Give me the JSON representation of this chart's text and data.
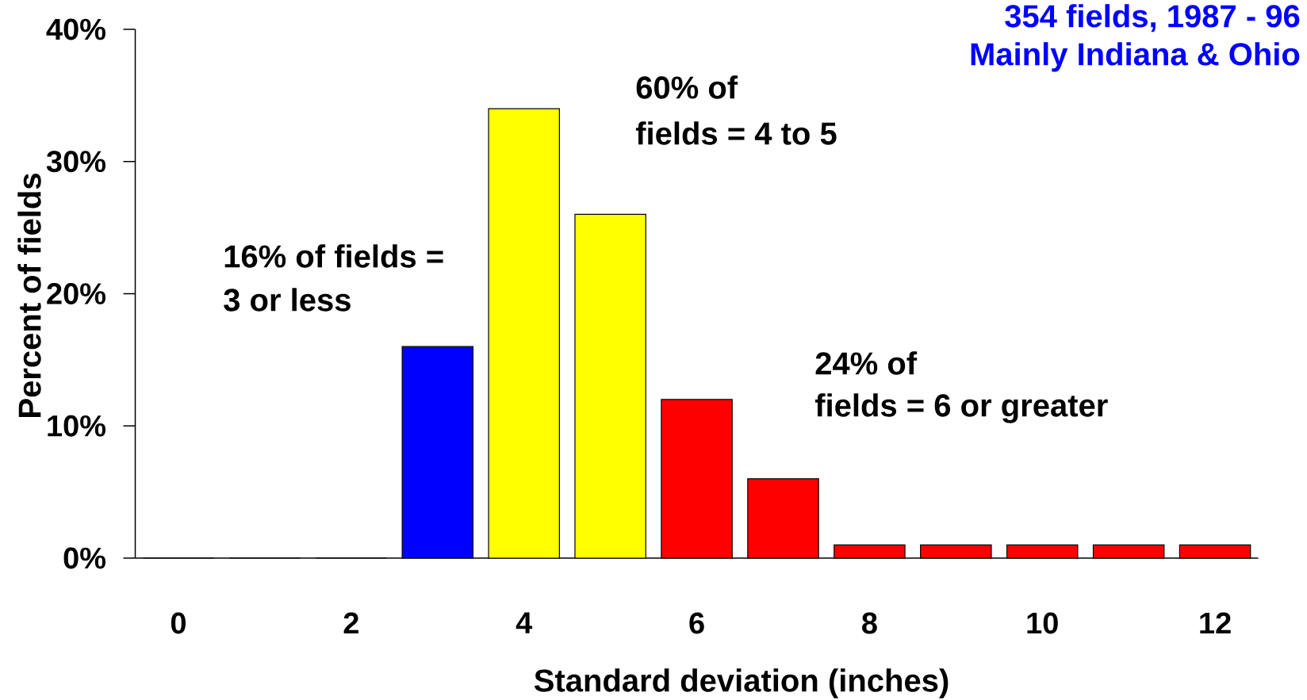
{
  "chart_data": {
    "type": "bar",
    "title": "354 fields, 1987 - 96",
    "subtitle": "Mainly  Indiana & Ohio",
    "xlabel": "Standard deviation (inches)",
    "ylabel": "Percent of fields",
    "categories": [
      "0",
      null,
      "2",
      null,
      "4",
      null,
      "6",
      null,
      "8",
      null,
      "10",
      null,
      "12"
    ],
    "values": [
      0,
      0,
      0,
      16,
      34,
      26,
      12,
      6,
      1,
      1,
      1,
      1,
      1
    ],
    "colors": [
      "#0000ff",
      "#0000ff",
      "#0000ff",
      "#0000ff",
      "#ffff00",
      "#ffff00",
      "#ff0000",
      "#ff0000",
      "#ff0000",
      "#ff0000",
      "#ff0000",
      "#ff0000",
      "#ff0000"
    ],
    "ylim": [
      0,
      40
    ],
    "yticks": [
      {
        "value": 0,
        "label": "0%"
      },
      {
        "value": 10,
        "label": "10%"
      },
      {
        "value": 20,
        "label": "20%"
      },
      {
        "value": 30,
        "label": "30%"
      },
      {
        "value": 40,
        "label": "40%"
      }
    ],
    "annotations": [
      "16% of fields =",
      "3 or less",
      "60% of",
      "fields = 4 to 5",
      "24% of",
      "fields = 6 or greater"
    ]
  }
}
